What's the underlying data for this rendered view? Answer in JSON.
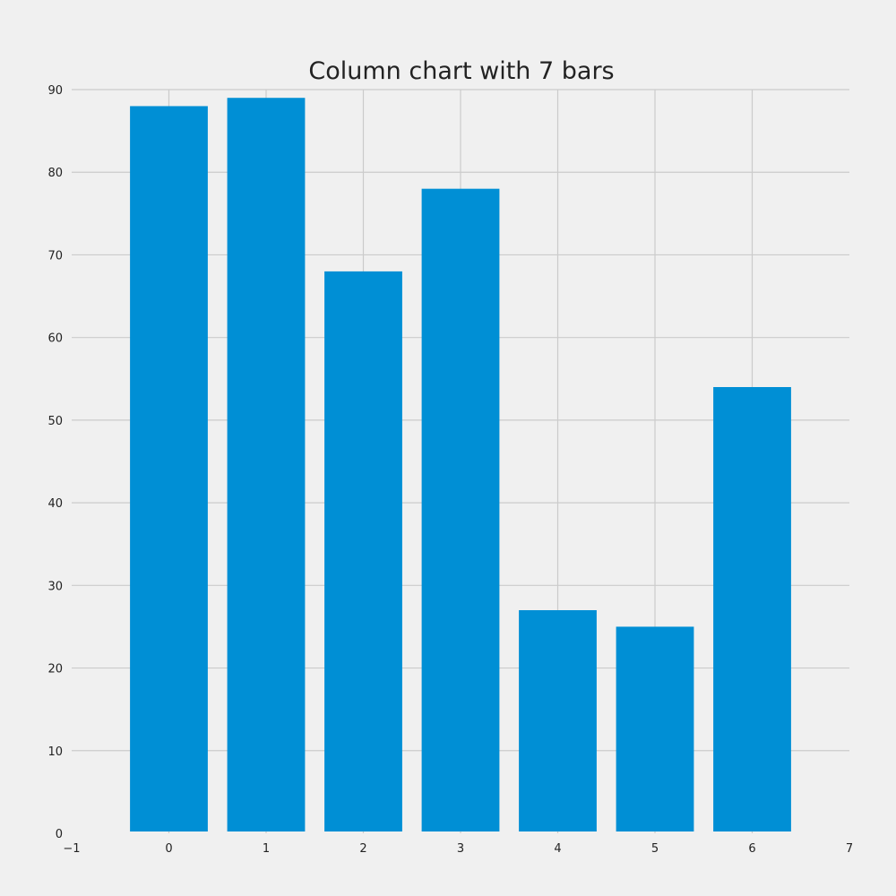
{
  "chart_data": {
    "type": "bar",
    "title": "Column chart with 7 bars",
    "xlabel": "",
    "ylabel": "",
    "categories": [
      0,
      1,
      2,
      3,
      4,
      5,
      6
    ],
    "values": [
      88,
      89,
      68,
      78,
      27,
      25,
      54
    ],
    "xlim": [
      -1,
      7
    ],
    "ylim": [
      0,
      90
    ],
    "xticks": [
      "−1",
      "0",
      "1",
      "2",
      "3",
      "4",
      "5",
      "6",
      "7"
    ],
    "yticks": [
      "0",
      "10",
      "20",
      "30",
      "40",
      "50",
      "60",
      "70",
      "80",
      "90"
    ],
    "grid": true,
    "legend": "none",
    "colors": {
      "bar": "#008fd5",
      "background": "#f0f0f0",
      "grid": "#cbcbcb",
      "text": "#222222"
    }
  }
}
